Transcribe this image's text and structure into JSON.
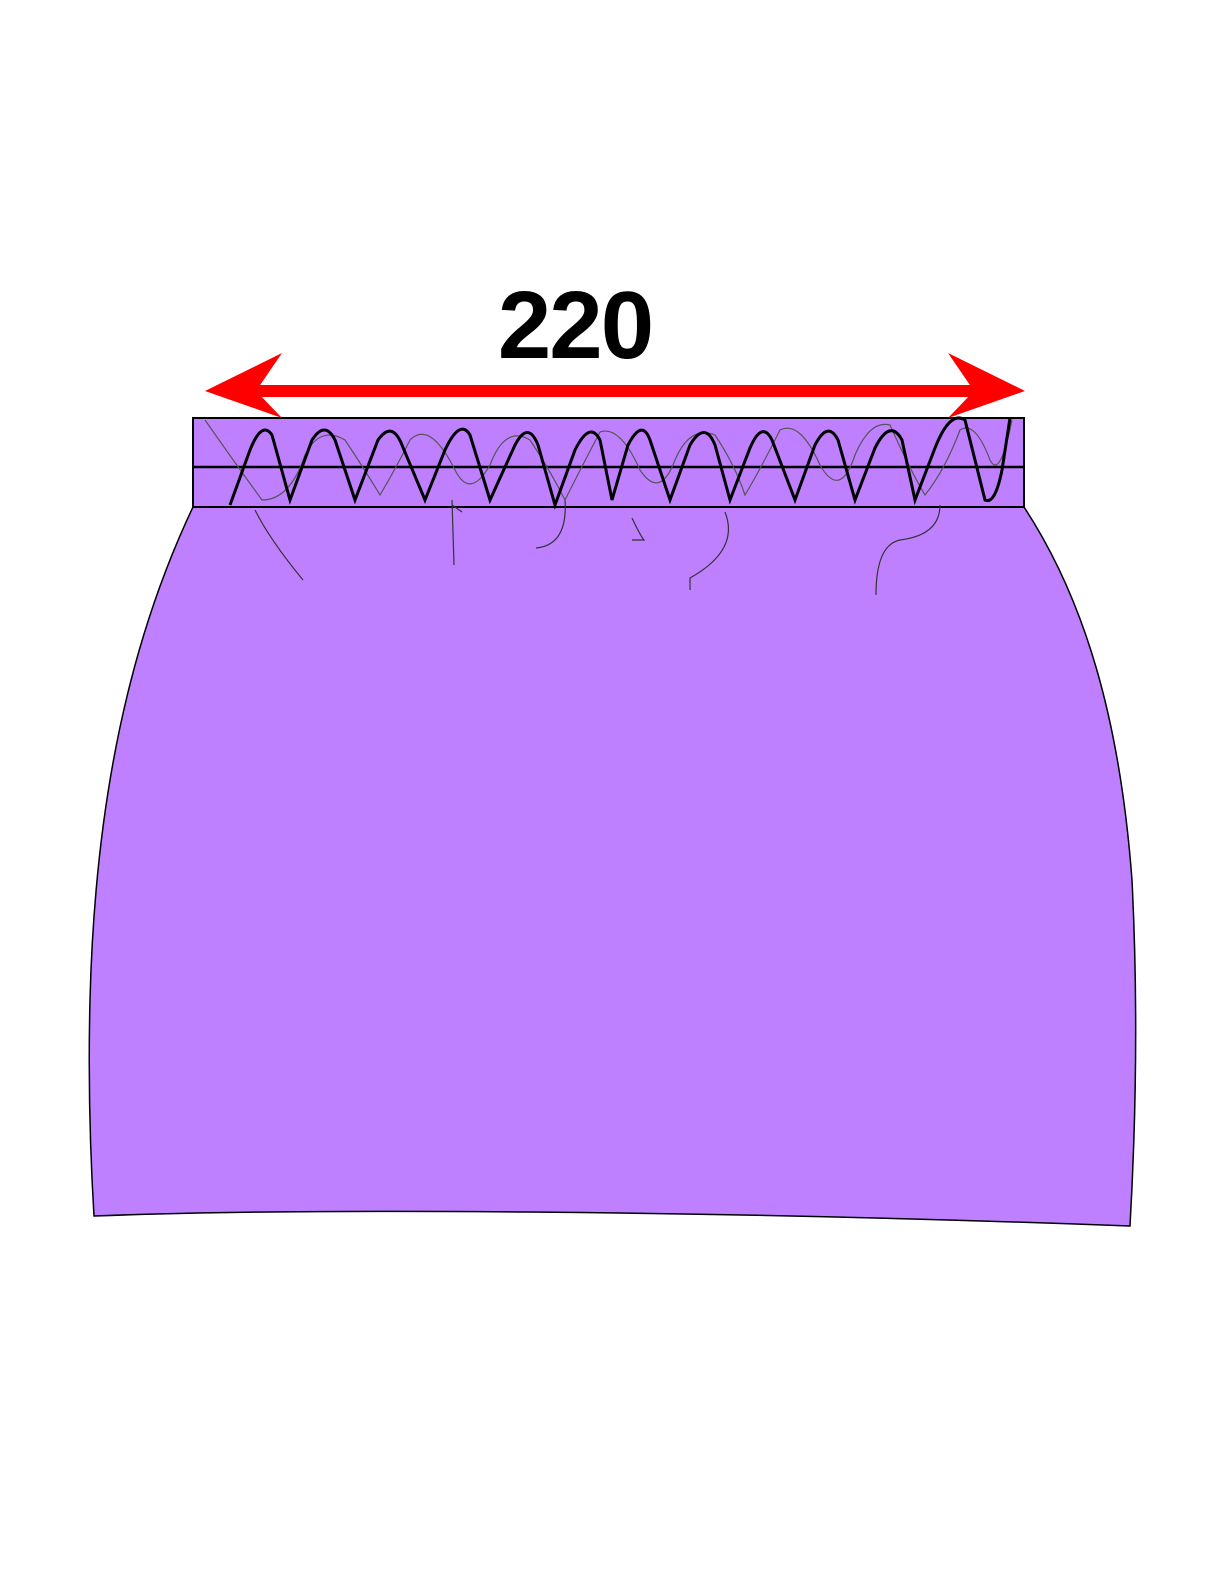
{
  "measurement": {
    "label": "220"
  },
  "colors": {
    "fabric": "#bf80ff",
    "outline": "#000000",
    "arrow": "#ff0000",
    "background": "#ffffff"
  },
  "icons": {
    "skirt": "skirt-body-shape",
    "waistband": "elastic-waistband",
    "arrow": "double-headed-arrow"
  }
}
